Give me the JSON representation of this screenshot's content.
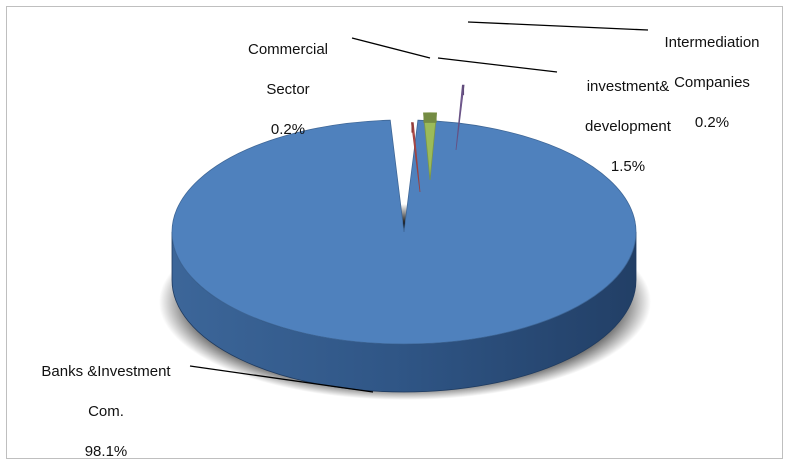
{
  "chart_data": {
    "type": "pie",
    "style": "3d-exploded",
    "title": "",
    "legend": "none",
    "slices": [
      {
        "name": "Banks &Investment Com.",
        "line1": "Banks &Investment",
        "line2": "Com.",
        "value": 98.1,
        "value_label": "98.1%",
        "color": "#4f81bd"
      },
      {
        "name": "Commercial Sector",
        "line1": "Commercial",
        "line2": "Sector",
        "value": 0.2,
        "value_label": "0.2%",
        "color": "#c0504d"
      },
      {
        "name": "investment& development",
        "line1": "investment&",
        "line2": "development",
        "value": 1.5,
        "value_label": "1.5%",
        "color": "#9bbb59"
      },
      {
        "name": "Intermediation Companies",
        "line1": "Intermediation",
        "line2": "Companies",
        "value": 0.2,
        "value_label": "0.2%",
        "color": "#8064a2"
      }
    ]
  }
}
